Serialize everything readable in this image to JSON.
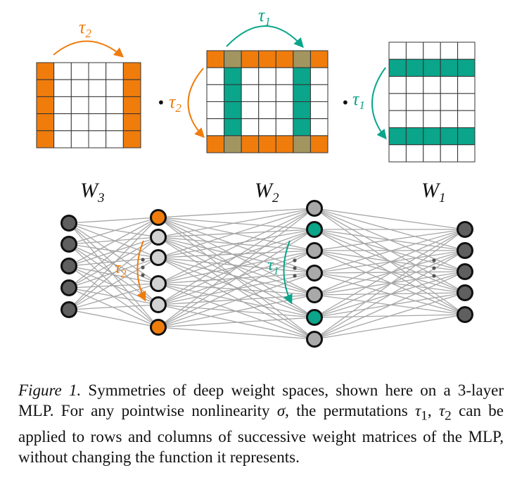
{
  "colors": {
    "orange": "#f07c0c",
    "teal": "#0aa58a",
    "olive": "#a29560",
    "grid_line": "#333333",
    "edge": "#a6a6a6",
    "node_dark": "#5f5f5f",
    "node_light": "#d2d2d2",
    "node_mid": "#a9a9a9"
  },
  "labels": {
    "tau1": "τ",
    "tau1_sub": "1",
    "tau2": "τ",
    "tau2_sub": "2",
    "dot": "•",
    "W3": "W",
    "W3_sub": "3",
    "W2": "W",
    "W2_sub": "2",
    "W1": "W",
    "W1_sub": "1"
  },
  "matrices": {
    "W3": {
      "rows": 5,
      "cols": 6,
      "orange_cols": [
        0,
        5
      ],
      "teal_rows": [],
      "teal_cols": []
    },
    "W2": {
      "rows": 6,
      "cols": 7,
      "orange_rows": [
        0,
        5
      ],
      "teal_cols": [
        1,
        5
      ]
    },
    "W1": {
      "rows": 7,
      "cols": 5,
      "teal_rows": [
        1,
        5
      ]
    }
  },
  "network": {
    "layer_input": {
      "count": 5,
      "style": [
        "dark",
        "dark",
        "dark",
        "dark",
        "dark"
      ]
    },
    "layer_hidden1": {
      "count": 6,
      "style": [
        "orange",
        "light",
        "light",
        "light",
        "light",
        "orange"
      ]
    },
    "layer_hidden2": {
      "count": 7,
      "style": [
        "mid",
        "teal",
        "mid",
        "mid",
        "mid",
        "teal",
        "mid"
      ]
    },
    "layer_output": {
      "count": 5,
      "style": [
        "dark",
        "dark",
        "dark",
        "dark",
        "dark"
      ]
    }
  },
  "caption": {
    "lead": "Figure 1.",
    "text1": " Symmetries of deep weight spaces, shown here on a 3-layer MLP. For any pointwise nonlinearity ",
    "sigma": "σ",
    "text2": ", the permutations ",
    "tau1": "τ",
    "tau1_sub": "1",
    "sep": ", ",
    "tau2": "τ",
    "tau2_sub": "2",
    "text3": " can be applied to rows and columns of successive weight matrices of the MLP, without changing the function it represents."
  }
}
